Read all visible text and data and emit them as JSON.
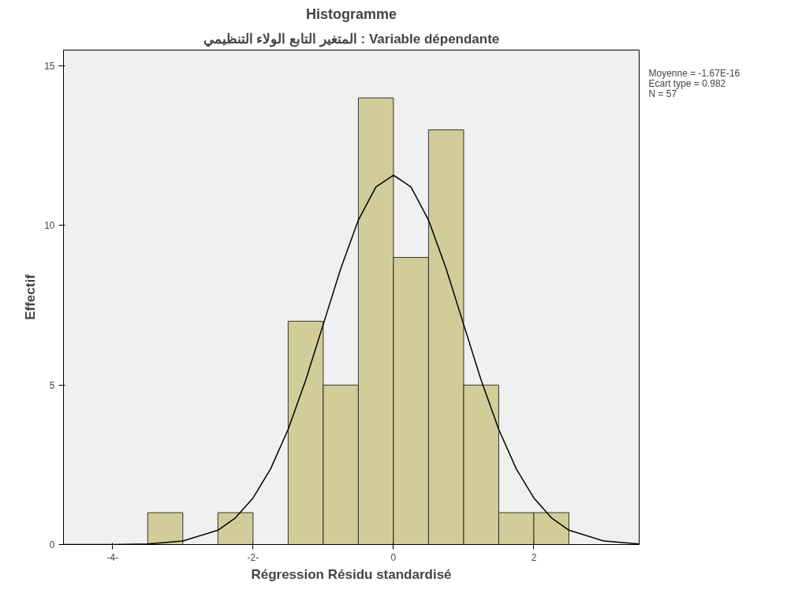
{
  "chart_data": {
    "type": "histogram",
    "title": "Histogramme",
    "subtitle": "المتغير التابع الولاء التنظيمي : Variable dépendante",
    "xlabel": "Régression Résidu standardisé",
    "ylabel": "Effectif",
    "bins": [
      -3.5,
      -3,
      -2.5,
      -2,
      -1.5,
      -1,
      -0.5,
      0,
      0.5,
      1,
      1.5,
      2,
      2.5
    ],
    "values": [
      1,
      0,
      1,
      0,
      7,
      5,
      14,
      9,
      13,
      5,
      1,
      1
    ],
    "color": "#d2cc98",
    "series": [
      {
        "type": "line",
        "color": "#000000",
        "x": [
          -4.7,
          -4,
          -3.5,
          -3,
          -2.5,
          -2.25,
          -2,
          -1.75,
          -1.5,
          -1.25,
          -1,
          -0.75,
          -0.5,
          -0.25,
          0,
          0.25,
          0.5,
          0.75,
          1,
          1.25,
          1.5,
          1.75,
          2,
          2.25,
          2.5,
          3,
          3.5
        ],
        "values": [
          0,
          0,
          0.02,
          0.11,
          0.45,
          0.84,
          1.46,
          2.37,
          3.61,
          5.15,
          6.9,
          8.65,
          10.17,
          11.21,
          11.58,
          11.21,
          10.17,
          8.65,
          6.9,
          5.15,
          3.61,
          2.37,
          1.46,
          0.84,
          0.45,
          0.11,
          0.02
        ]
      }
    ],
    "xlim": [
      -4.7,
      3.5
    ],
    "ylim": [
      0,
      15.5
    ],
    "xticks": [
      {
        "value": -4,
        "label": "-4-"
      },
      {
        "value": -2,
        "label": "-2-"
      },
      0,
      2
    ],
    "yticks": [
      0,
      5,
      10,
      15
    ],
    "grid": false,
    "annotations": [
      "Moyenne = -1.67E-16",
      "Ecart type = 0.982",
      "N = 57"
    ]
  }
}
